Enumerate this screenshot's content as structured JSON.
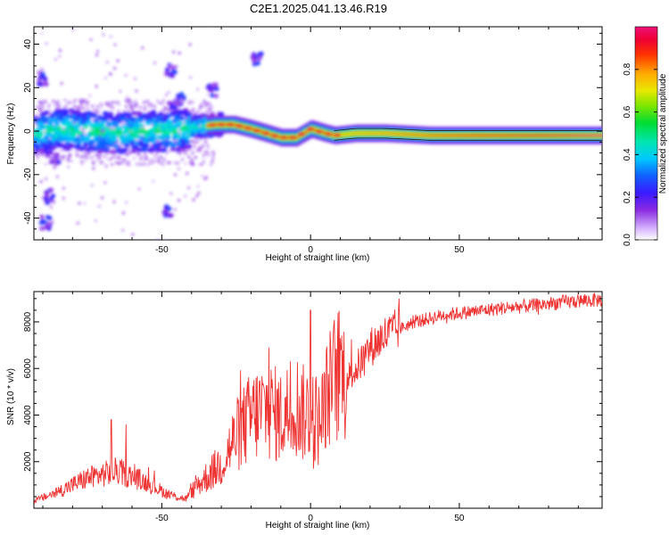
{
  "title": "C2E1.2025.041.13.46.R19",
  "chart_data": [
    {
      "type": "heatmap",
      "title": "",
      "xlabel": "Height of straight line (km)",
      "ylabel": "Frequency (Hz)",
      "xlim": [
        -93,
        98
      ],
      "ylim": [
        -50,
        48
      ],
      "xticks": [
        -50,
        0,
        50
      ],
      "yticks": [
        -40,
        -20,
        0,
        20,
        40
      ],
      "colorbar": {
        "label": "Normalized spectral amplitude",
        "range": [
          0,
          1
        ],
        "ticks": [
          "0.0",
          "0.2",
          "0.4",
          "0.6",
          "0.8"
        ],
        "tick_values": [
          0,
          0.2,
          0.4,
          0.6,
          0.8
        ]
      },
      "ridge": {
        "description_points": [
          [
            -93,
            -1
          ],
          [
            -85,
            1
          ],
          [
            -75,
            0
          ],
          [
            -65,
            -1
          ],
          [
            -55,
            0
          ],
          [
            -45,
            0
          ],
          [
            -38,
            2
          ],
          [
            -32,
            3
          ],
          [
            -26,
            3
          ],
          [
            -20,
            1
          ],
          [
            -15,
            -1
          ],
          [
            -10,
            -3
          ],
          [
            -5,
            -3
          ],
          [
            0,
            1
          ],
          [
            5,
            -1
          ],
          [
            8,
            -2
          ],
          [
            15,
            -1
          ],
          [
            25,
            -1
          ],
          [
            40,
            -2
          ],
          [
            60,
            -2
          ],
          [
            80,
            -2
          ],
          [
            98,
            -2
          ]
        ],
        "peak_amplitude_range_km": [
          -33,
          98
        ]
      },
      "scatter_clusters": [
        {
          "x": -89,
          "y": -8
        },
        {
          "x": -86,
          "y": -12
        },
        {
          "x": -90,
          "y": 24
        },
        {
          "x": -88,
          "y": -30
        },
        {
          "x": -89,
          "y": -42
        },
        {
          "x": -46,
          "y": 12
        },
        {
          "x": -44,
          "y": 15
        },
        {
          "x": -33,
          "y": 19
        },
        {
          "x": -48,
          "y": -36
        },
        {
          "x": -47,
          "y": 28
        },
        {
          "x": -18,
          "y": 33
        },
        {
          "x": -60,
          "y": 4
        },
        {
          "x": -70,
          "y": -2
        }
      ],
      "grid": false
    },
    {
      "type": "line",
      "title": "",
      "xlabel": "Height of straight line (km)",
      "ylabel": "SNR (10 * v/v)",
      "xlim": [
        -93,
        98
      ],
      "ylim": [
        0,
        9300
      ],
      "xticks": [
        -50,
        0,
        50
      ],
      "yticks": [
        2000,
        4000,
        6000,
        8000
      ],
      "color": "#ee3333",
      "trend": [
        [
          -93,
          300
        ],
        [
          -85,
          700
        ],
        [
          -75,
          1300
        ],
        [
          -65,
          1600
        ],
        [
          -55,
          1100
        ],
        [
          -48,
          600
        ],
        [
          -42,
          400
        ],
        [
          -38,
          1000
        ],
        [
          -30,
          1900
        ],
        [
          -25,
          3100
        ],
        [
          -20,
          3900
        ],
        [
          -15,
          4300
        ],
        [
          -10,
          3900
        ],
        [
          -5,
          4500
        ],
        [
          -2,
          4000
        ],
        [
          0,
          4300
        ],
        [
          3,
          3600
        ],
        [
          6,
          5000
        ],
        [
          9,
          5800
        ],
        [
          12,
          5500
        ],
        [
          16,
          6100
        ],
        [
          20,
          6900
        ],
        [
          25,
          7400
        ],
        [
          30,
          7700
        ],
        [
          35,
          8000
        ],
        [
          45,
          8300
        ],
        [
          55,
          8450
        ],
        [
          65,
          8600
        ],
        [
          75,
          8700
        ],
        [
          85,
          8850
        ],
        [
          98,
          8950
        ]
      ],
      "spikes": [
        {
          "x": 0,
          "y": 8500
        },
        {
          "x": 1,
          "y": 1700
        },
        {
          "x": 10,
          "y": 7300
        },
        {
          "x": 5,
          "y": 2600
        },
        {
          "x": -14,
          "y": 6900
        },
        {
          "x": -67,
          "y": 3800
        },
        {
          "x": -62,
          "y": 3600
        },
        {
          "x": 11,
          "y": 4600
        },
        {
          "x": 26,
          "y": 7900
        }
      ],
      "grid": false
    }
  ]
}
